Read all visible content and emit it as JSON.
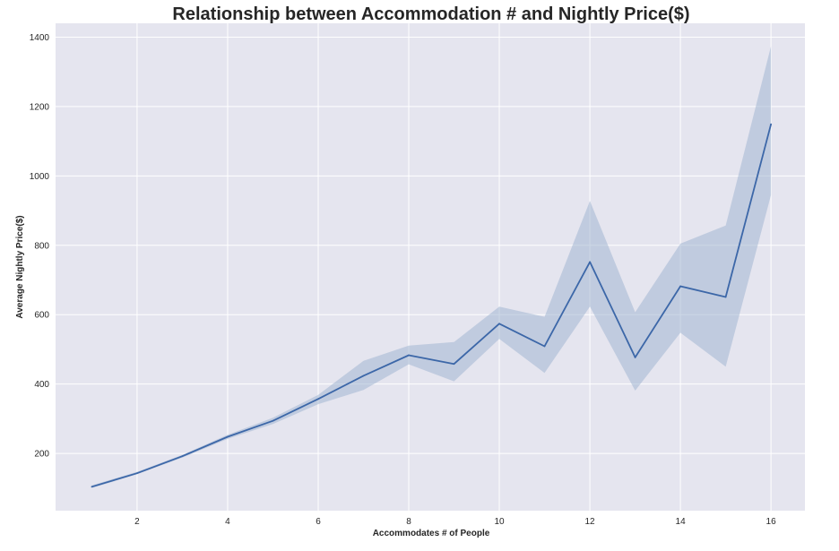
{
  "chart_data": {
    "type": "line",
    "title": "Relationship between Accommodation # and Nightly Price($)",
    "xlabel": "Accommodates # of People",
    "ylabel": "Average Nightly Price($)",
    "xlim": [
      0.2,
      16.75
    ],
    "ylim": [
      35,
      1440
    ],
    "x_ticks": [
      2,
      4,
      6,
      8,
      10,
      12,
      14,
      16
    ],
    "y_ticks": [
      200,
      400,
      600,
      800,
      1000,
      1200,
      1400
    ],
    "grid": true,
    "style": "seaborn-darkgrid",
    "colors": {
      "background": "#e5e5ef",
      "grid": "#ffffff",
      "line": "#3c67a8",
      "band": "#a3b6d2"
    },
    "x": [
      1,
      2,
      3,
      4,
      5,
      6,
      7,
      8,
      9,
      10,
      11,
      12,
      13,
      14,
      15,
      16
    ],
    "series": [
      {
        "values": [
          104,
          143,
          192,
          248,
          294,
          357,
          424,
          483,
          458,
          574,
          509,
          752,
          477,
          682,
          651,
          1149
        ],
        "ci_lower": [
          100,
          140,
          188,
          242,
          285,
          342,
          383,
          457,
          408,
          530,
          432,
          623,
          381,
          548,
          450,
          945
        ],
        "ci_upper": [
          108,
          147,
          196,
          254,
          303,
          369,
          467,
          511,
          521,
          623,
          594,
          928,
          607,
          805,
          857,
          1374
        ]
      }
    ]
  }
}
